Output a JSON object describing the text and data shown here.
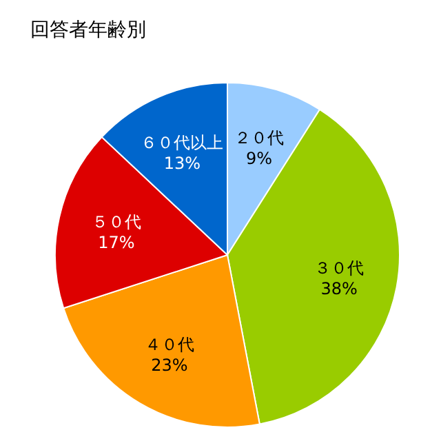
{
  "chart_data": {
    "type": "pie",
    "title": "回答者年齢別",
    "categories": [
      "２０代",
      "３０代",
      "４０代",
      "５０代",
      "６０代以上"
    ],
    "values": [
      9,
      38,
      23,
      17,
      13
    ],
    "colors": [
      "#99ccff",
      "#99cc00",
      "#ff9900",
      "#dd0000",
      "#0066cc"
    ],
    "value_labels": [
      "9%",
      "38%",
      "23%",
      "17%",
      "13%"
    ]
  }
}
